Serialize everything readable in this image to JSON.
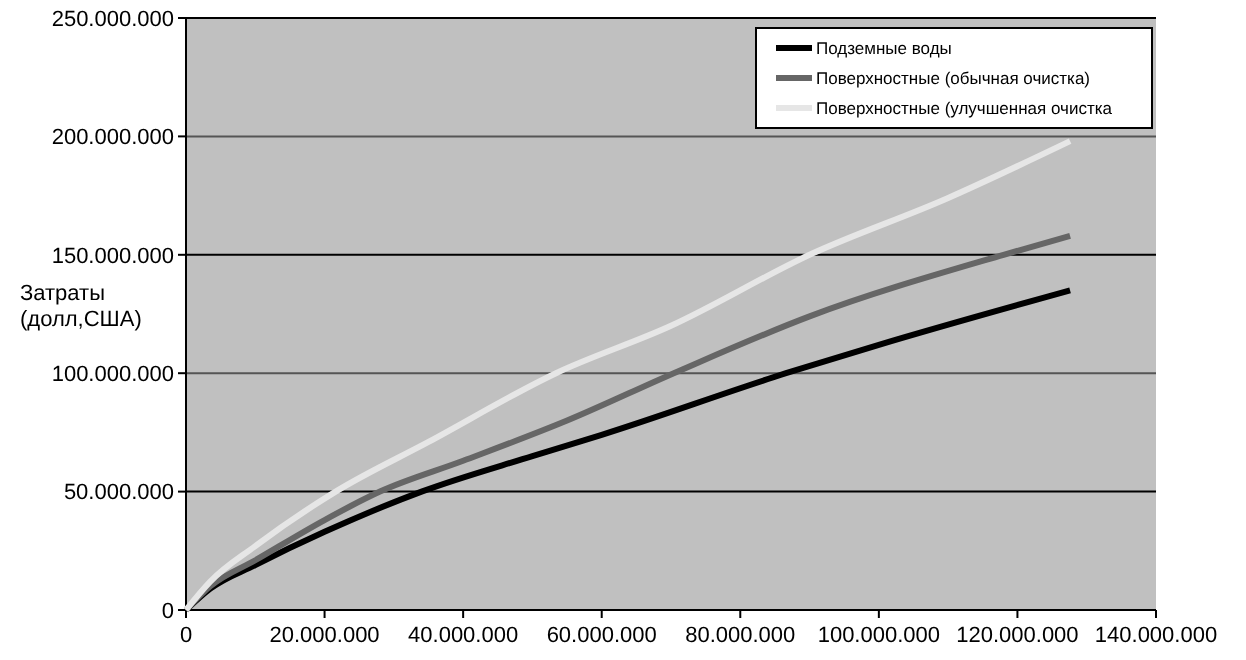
{
  "chart_data": {
    "type": "line",
    "ylabel": "Затраты\n(долл,США)",
    "xlim": [
      0,
      140000000
    ],
    "ylim": [
      0,
      250000000
    ],
    "xticks": [
      0,
      {
        "value": 20000000,
        "label": "20.000.000"
      },
      {
        "value": 40000000,
        "label": "40.000.000"
      },
      {
        "value": 60000000,
        "label": "60.000.000"
      },
      {
        "value": 80000000,
        "label": "80.000.000"
      },
      {
        "value": 100000000,
        "label": "100.000.000"
      },
      {
        "value": 120000000,
        "label": "120.000.000"
      },
      {
        "value": 140000000,
        "label": "140.000.000"
      }
    ],
    "yticks": [
      0,
      {
        "value": 50000000,
        "label": "50.000.000"
      },
      {
        "value": 100000000,
        "label": "100.000.000"
      },
      {
        "value": 150000000,
        "label": "150.000.000"
      },
      {
        "value": 200000000,
        "label": "200.000.000"
      },
      {
        "value": 250000000,
        "label": "250.000.000"
      }
    ],
    "grid": "y",
    "legend": "top right",
    "marker": "none",
    "line_style": "solid",
    "series": [
      {
        "name": "Подземные воды",
        "color": "#000000",
        "x": [
          0,
          3500000,
          10000000,
          20000000,
          34000000,
          50000000,
          60000000,
          86600000,
          100000000,
          127600000
        ],
        "values": [
          0,
          9000000,
          19000000,
          33000000,
          50000000,
          65000000,
          74000000,
          100000000,
          112000000,
          135000000
        ]
      },
      {
        "name": "Поверхностные (обычная очистка)",
        "color": "#666666",
        "x": [
          0,
          3500000,
          10000000,
          20000000,
          28000000,
          40000000,
          55000000,
          70400000,
          90000000,
          118000000,
          127600000
        ],
        "values": [
          0,
          10000000,
          21000000,
          38000000,
          50000000,
          63000000,
          80000000,
          100000000,
          124000000,
          150000000,
          158000000
        ]
      },
      {
        "name": "Поверхностные (улучшенная очистка",
        "color": "#e6e6e6",
        "x": [
          0,
          3500000,
          10000000,
          21600000,
          35000000,
          53400000,
          70000000,
          90000000,
          110000000,
          127600000
        ],
        "values": [
          0,
          12000000,
          27000000,
          50000000,
          71000000,
          100000000,
          120000000,
          150000000,
          174000000,
          198000000
        ]
      }
    ]
  }
}
